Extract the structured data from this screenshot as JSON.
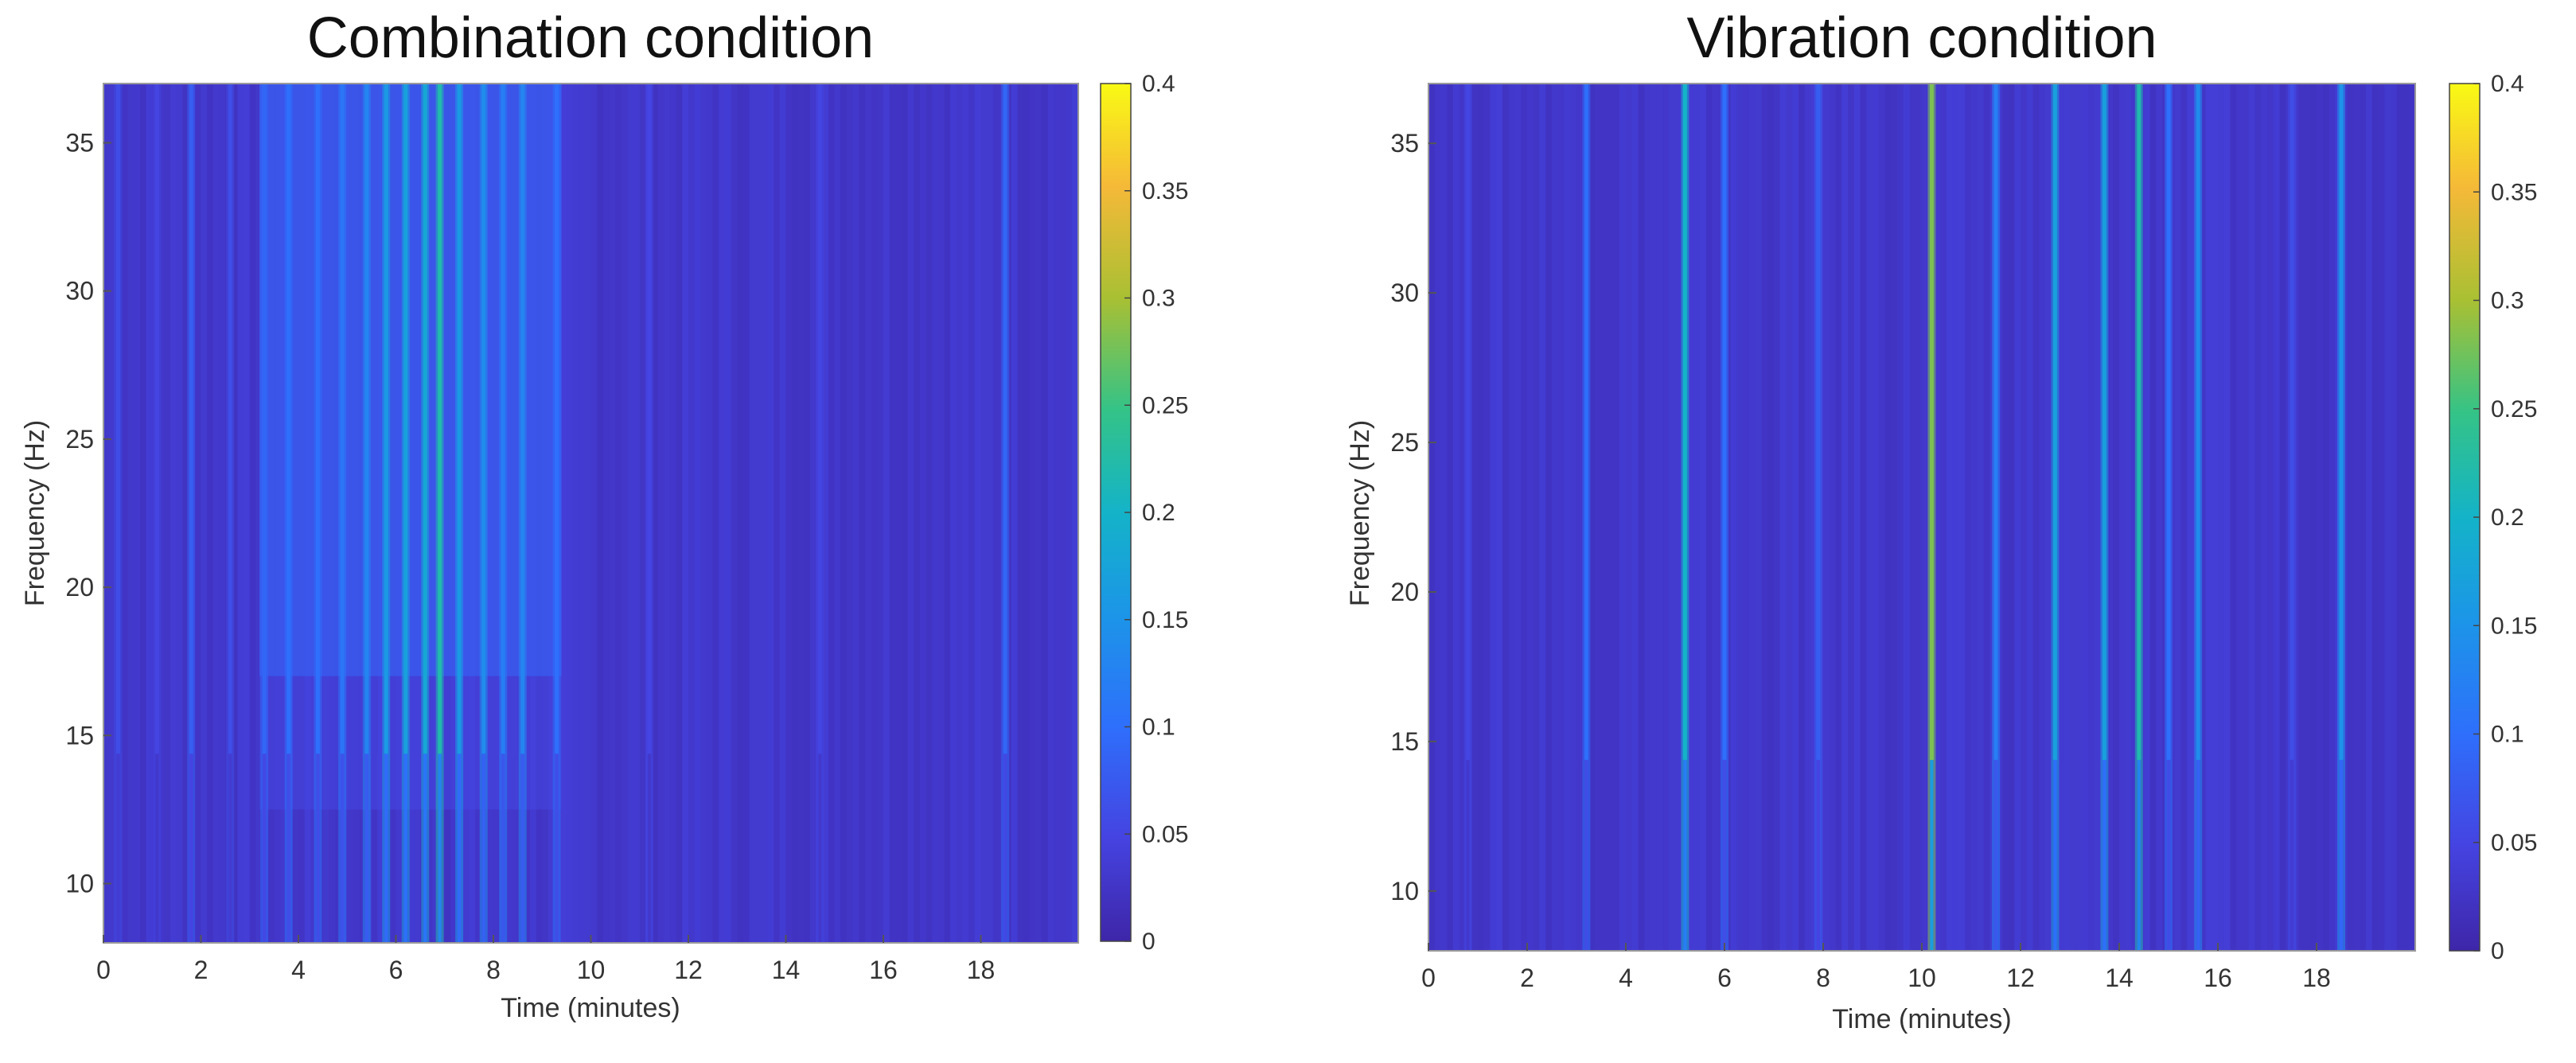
{
  "chart_data": [
    {
      "type": "heatmap",
      "title": "Combination condition",
      "xlabel": "Time (minutes)",
      "ylabel": "Frequency (Hz)",
      "xlim": [
        0,
        20
      ],
      "ylim": [
        8,
        37
      ],
      "xticks": [
        "0",
        "2",
        "4",
        "6",
        "8",
        "10",
        "12",
        "14",
        "16",
        "18"
      ],
      "yticks": [
        "10",
        "15",
        "20",
        "25",
        "30",
        "35"
      ],
      "colorbar": {
        "range": [
          0,
          0.4
        ],
        "ticks": [
          "0",
          "0.05",
          "0.1",
          "0.15",
          "0.2",
          "0.25",
          "0.3",
          "0.35",
          "0.4"
        ],
        "colormap": "parula"
      },
      "background_level": 0.03,
      "regions": [
        {
          "t_start": 3.2,
          "t_end": 9.4,
          "f_start": 17,
          "f_end": 37,
          "level": 0.075,
          "description": "elevated activity"
        }
      ],
      "lines": [
        {
          "t": 0.3,
          "level": 0.06
        },
        {
          "t": 1.1,
          "level": 0.05
        },
        {
          "t": 1.8,
          "level": 0.08
        },
        {
          "t": 2.6,
          "level": 0.06
        },
        {
          "t": 3.3,
          "level": 0.09
        },
        {
          "t": 3.8,
          "level": 0.1
        },
        {
          "t": 4.4,
          "level": 0.1
        },
        {
          "t": 4.9,
          "level": 0.11
        },
        {
          "t": 5.4,
          "level": 0.13
        },
        {
          "t": 5.8,
          "level": 0.16
        },
        {
          "t": 6.2,
          "level": 0.17
        },
        {
          "t": 6.6,
          "level": 0.18
        },
        {
          "t": 6.9,
          "level": 0.22
        },
        {
          "t": 7.3,
          "level": 0.16
        },
        {
          "t": 7.8,
          "level": 0.14
        },
        {
          "t": 8.2,
          "level": 0.12
        },
        {
          "t": 8.6,
          "level": 0.13
        },
        {
          "t": 9.3,
          "level": 0.1
        },
        {
          "t": 11.2,
          "level": 0.05
        },
        {
          "t": 14.7,
          "level": 0.05
        },
        {
          "t": 18.5,
          "level": 0.09
        }
      ]
    },
    {
      "type": "heatmap",
      "title": "Vibration condition",
      "xlabel": "Time (minutes)",
      "ylabel": "Frequency (Hz)",
      "xlim": [
        0,
        20
      ],
      "ylim": [
        8,
        37
      ],
      "xticks": [
        "0",
        "2",
        "4",
        "6",
        "8",
        "10",
        "12",
        "14",
        "16",
        "18"
      ],
      "yticks": [
        "10",
        "15",
        "20",
        "25",
        "30",
        "35"
      ],
      "colorbar": {
        "range": [
          0,
          0.4
        ],
        "ticks": [
          "0",
          "0.05",
          "0.1",
          "0.15",
          "0.2",
          "0.25",
          "0.3",
          "0.35",
          "0.4"
        ],
        "colormap": "parula"
      },
      "background_level": 0.03,
      "regions": [],
      "lines": [
        {
          "t": 0.8,
          "level": 0.05
        },
        {
          "t": 3.2,
          "level": 0.1
        },
        {
          "t": 5.2,
          "level": 0.2
        },
        {
          "t": 6.0,
          "level": 0.1
        },
        {
          "t": 7.9,
          "level": 0.08
        },
        {
          "t": 10.2,
          "level": 0.28
        },
        {
          "t": 11.5,
          "level": 0.12
        },
        {
          "t": 12.7,
          "level": 0.17
        },
        {
          "t": 13.7,
          "level": 0.17
        },
        {
          "t": 14.4,
          "level": 0.22
        },
        {
          "t": 15.0,
          "level": 0.1
        },
        {
          "t": 15.6,
          "level": 0.14
        },
        {
          "t": 17.5,
          "level": 0.06
        },
        {
          "t": 18.5,
          "level": 0.15
        }
      ]
    }
  ]
}
